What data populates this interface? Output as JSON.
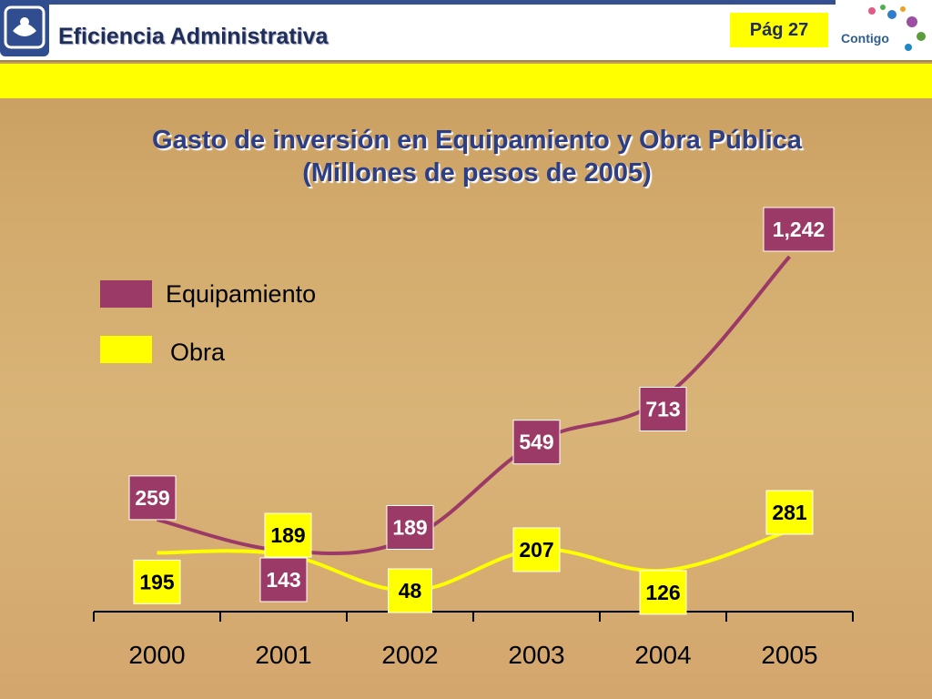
{
  "header": {
    "title": "Eficiencia Administrativa",
    "page": "Pág 27",
    "logo_right_text": "Contigo"
  },
  "colors": {
    "equipamiento": "#9b3a66",
    "obra": "#ffff00",
    "title": "#2c3e86"
  },
  "chart_data": {
    "type": "line",
    "title": "Gasto de inversión en Equipamiento y Obra Pública",
    "subtitle": "(Millones de pesos de 2005)",
    "categories": [
      "2000",
      "2001",
      "2002",
      "2003",
      "2004",
      "2005"
    ],
    "series": [
      {
        "name": "Equipamiento",
        "values": [
          259,
          143,
          189,
          549,
          713,
          1242
        ],
        "labels": [
          "259",
          "143",
          "189",
          "549",
          "713",
          "1,242"
        ]
      },
      {
        "name": "Obra",
        "values": [
          195,
          189,
          48,
          207,
          126,
          281
        ],
        "labels": [
          "195",
          "189",
          "48",
          "207",
          "126",
          "281"
        ]
      }
    ],
    "legend": "left",
    "grid": false,
    "ylim": [
      0,
      1400
    ]
  }
}
